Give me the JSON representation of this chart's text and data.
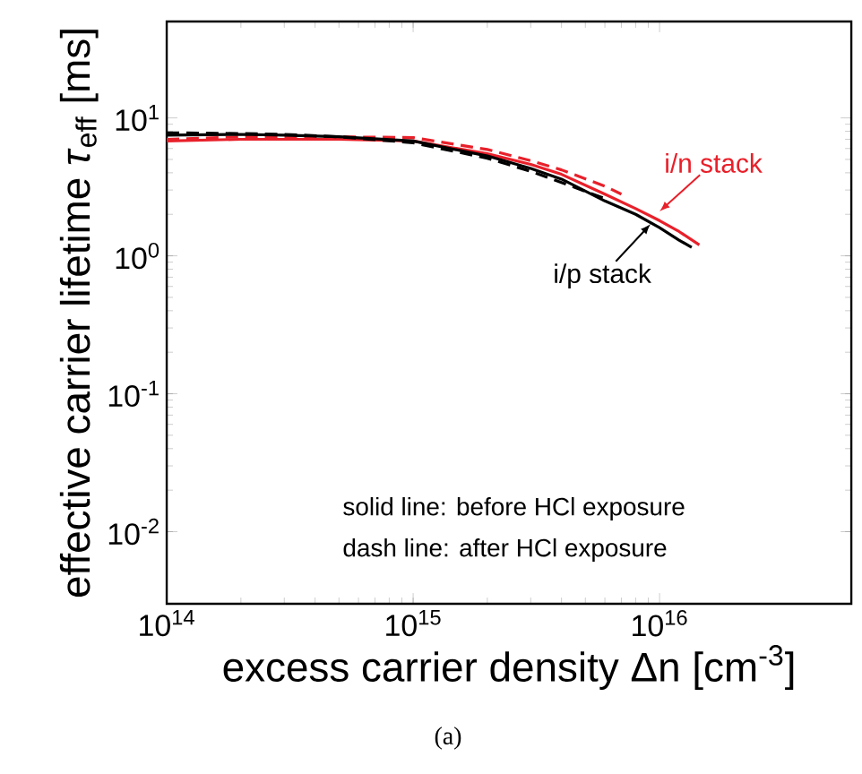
{
  "chart_data": {
    "type": "line",
    "log": "xy",
    "xlabel": "excess carrier density Δn [cm$^{-3}$]",
    "ylabel": "effective carrier lifetime *τ*$_{eff}$ [ms]",
    "xlim": [
      100000000000000.0,
      6e+16
    ],
    "ylim": [
      0.003,
      50
    ],
    "xticks": [
      {
        "value": 100000000000000.0,
        "label": "10$^{14}$"
      },
      {
        "value": 1000000000000000.0,
        "label": "10$^{15}$"
      },
      {
        "value": 1e+16,
        "label": "10$^{16}$"
      }
    ],
    "yticks": [
      {
        "value": 0.01,
        "label": "10$^{-2}$"
      },
      {
        "value": 0.1,
        "label": "10$^{-1}$"
      },
      {
        "value": 1,
        "label": "10$^{0}$"
      },
      {
        "value": 10,
        "label": "10$^{1}$"
      }
    ],
    "grid": false,
    "marker": "none",
    "series": [
      {
        "color": "#e8202a",
        "line_style": "solid",
        "x": [
          100000000000000.0,
          200000000000000.0,
          300000000000000.0,
          500000000000000.0,
          1000000000000000.0,
          2000000000000000.0,
          3000000000000000.0,
          4000000000000000.0,
          6000000000000000.0,
          8000000000000000.0,
          1e+16,
          1.2e+16,
          1.45e+16
        ],
        "values": [
          6.8,
          7.0,
          7.0,
          7.0,
          6.8,
          5.5,
          4.6,
          3.9,
          2.8,
          2.2,
          1.8,
          1.5,
          1.2
        ]
      },
      {
        "color": "#e8202a",
        "line_style": "dashed",
        "x": [
          100000000000000.0,
          200000000000000.0,
          300000000000000.0,
          500000000000000.0,
          1000000000000000.0,
          2000000000000000.0,
          3000000000000000.0,
          4000000000000000.0,
          6000000000000000.0,
          7000000000000000.0
        ],
        "values": [
          7.0,
          7.3,
          7.3,
          7.3,
          7.2,
          5.9,
          4.9,
          4.2,
          3.2,
          2.8
        ]
      },
      {
        "color": "#000000",
        "line_style": "solid",
        "x": [
          100000000000000.0,
          200000000000000.0,
          300000000000000.0,
          500000000000000.0,
          1000000000000000.0,
          2000000000000000.0,
          3000000000000000.0,
          4000000000000000.0,
          6000000000000000.0,
          8000000000000000.0,
          1e+16,
          1.2e+16,
          1.35e+16
        ],
        "values": [
          7.5,
          7.6,
          7.5,
          7.3,
          6.8,
          5.3,
          4.3,
          3.6,
          2.5,
          2.0,
          1.6,
          1.3,
          1.15
        ]
      },
      {
        "color": "#000000",
        "line_style": "dashed",
        "x": [
          100000000000000.0,
          200000000000000.0,
          300000000000000.0,
          500000000000000.0,
          1000000000000000.0,
          2000000000000000.0,
          3000000000000000.0,
          4000000000000000.0,
          6000000000000000.0
        ],
        "values": [
          7.8,
          7.7,
          7.6,
          7.3,
          6.6,
          5.1,
          4.1,
          3.4,
          2.6
        ]
      }
    ],
    "annotations": [
      {
        "text": "i/n stack",
        "x": 1e+16,
        "y": 2.1
      },
      {
        "text": "i/p stack",
        "x": 9200000000000000.0,
        "y": 1.7
      },
      "solid line: before HCl exposure",
      "dash line: after HCl exposure",
      "(a)"
    ]
  }
}
